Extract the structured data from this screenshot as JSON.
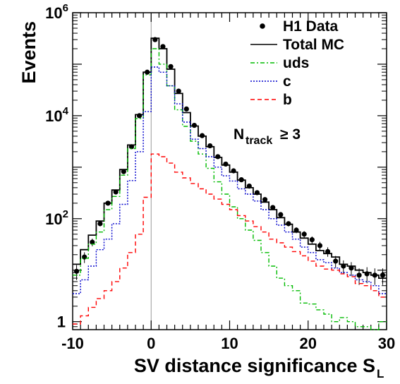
{
  "chart_data": {
    "type": "line",
    "xlabel": "SV distance significance S",
    "xlabel_subscript": "L",
    "ylabel": "Events",
    "xlim": [
      -10,
      30
    ],
    "ylim": [
      0.7,
      1000000
    ],
    "y_scale": "log",
    "x_ticks": [
      "-10",
      "0",
      "10",
      "20",
      "30"
    ],
    "y_ticks": [
      {
        "value": 1,
        "base": "1",
        "exp": ""
      },
      {
        "value": 100,
        "base": "10",
        "exp": "2"
      },
      {
        "value": 10000,
        "base": "10",
        "exp": "4"
      },
      {
        "value": 1000000,
        "base": "10",
        "exp": "6"
      }
    ],
    "bin_edges": [
      -10,
      -9,
      -8,
      -7,
      -6,
      -5,
      -4,
      -3,
      -2,
      -1,
      0,
      1,
      2,
      3,
      4,
      5,
      6,
      7,
      8,
      9,
      10,
      11,
      12,
      13,
      14,
      15,
      16,
      17,
      18,
      19,
      20,
      21,
      22,
      23,
      24,
      25,
      26,
      27,
      28,
      29,
      30
    ],
    "annotation": {
      "main": "N",
      "sub": "track",
      "rel": "≥ 3"
    },
    "legend_position": "top-right",
    "series": [
      {
        "name": "H1 Data",
        "style": "points",
        "color": "#000000",
        "values": [
          9.5,
          18,
          35,
          80,
          200,
          330,
          820,
          2500,
          10000,
          70000,
          300000,
          220000,
          90000,
          30000,
          13500,
          6500,
          4100,
          2600,
          1600,
          1150,
          850,
          570,
          430,
          320,
          235,
          165,
          120,
          80,
          60,
          50,
          39,
          30,
          23,
          15,
          12,
          11,
          8,
          8.5,
          8,
          8
        ]
      },
      {
        "name": "Total MC",
        "style": "step",
        "color": "#000000",
        "values": [
          13,
          25,
          48,
          90,
          200,
          360,
          900,
          2700,
          10500,
          70000,
          320000,
          200000,
          80000,
          27000,
          11500,
          6300,
          4000,
          2500,
          1550,
          1100,
          800,
          560,
          400,
          300,
          210,
          150,
          105,
          78,
          55,
          42,
          32,
          24,
          21,
          18,
          13,
          12,
          10,
          9,
          8,
          7
        ]
      },
      {
        "name": "uds",
        "style": "step",
        "color": "#00bb00",
        "values": [
          8,
          17,
          32,
          55,
          150,
          270,
          700,
          2300,
          8800,
          62000,
          200000,
          100000,
          38000,
          13000,
          6200,
          3200,
          1800,
          950,
          520,
          300,
          170,
          100,
          60,
          38,
          22,
          12,
          7,
          5,
          4,
          2.3,
          2.2,
          1.7,
          1.4,
          1.0,
          1.2,
          1.0,
          0.8,
          0.8,
          0.7,
          1.0
        ]
      },
      {
        "name": "c",
        "style": "step",
        "color": "#0000cc",
        "values": [
          3.5,
          6.5,
          12,
          25,
          40,
          80,
          190,
          550,
          2000,
          12000,
          88000,
          70000,
          38000,
          17000,
          7500,
          3500,
          2300,
          1600,
          1000,
          680,
          540,
          380,
          300,
          220,
          150,
          100,
          75,
          55,
          40,
          28,
          22,
          16,
          14,
          11,
          9,
          8,
          6.5,
          6,
          5,
          3.5
        ]
      },
      {
        "name": "b",
        "style": "step",
        "color": "#ff0000",
        "values": [
          0.9,
          1.3,
          1.9,
          2.8,
          4,
          6,
          11,
          22,
          50,
          260,
          1800,
          1600,
          1200,
          800,
          620,
          480,
          380,
          300,
          240,
          190,
          150,
          115,
          90,
          70,
          55,
          40,
          34,
          28,
          23,
          19,
          15,
          12,
          10.5,
          10,
          8.5,
          7.5,
          5.5,
          5,
          4,
          3
        ]
      }
    ]
  }
}
